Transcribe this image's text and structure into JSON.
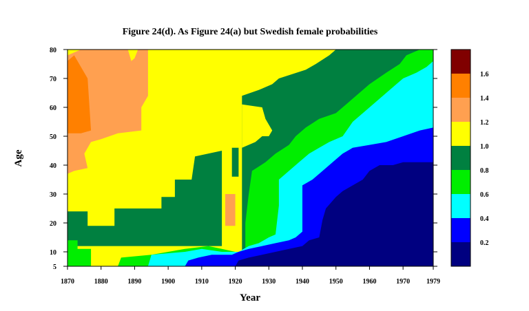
{
  "chart_data": {
    "type": "heatmap",
    "title": "Figure 24(d). As Figure 24(a) but Swedish female probabilities",
    "xlabel": "Year",
    "ylabel": "Age",
    "xlim": [
      1870,
      1979
    ],
    "ylim": [
      5,
      80
    ],
    "x_ticks": [
      "1870",
      "1880",
      "1890",
      "1900",
      "1910",
      "1920",
      "1930",
      "1940",
      "1950",
      "1960",
      "1970",
      "1979"
    ],
    "y_ticks": [
      "5",
      "10",
      "20",
      "30",
      "40",
      "50",
      "60",
      "70",
      "80"
    ],
    "colorbar": {
      "range": [
        0,
        1.8
      ],
      "tick_labels": [
        "0.2",
        "0.4",
        "0.6",
        "0.8",
        "1.0",
        "1.2",
        "1.4",
        "1.6"
      ],
      "bins": [
        {
          "from": 0.0,
          "to": 0.2,
          "color": "#000080"
        },
        {
          "from": 0.2,
          "to": 0.4,
          "color": "#0000ff"
        },
        {
          "from": 0.4,
          "to": 0.6,
          "color": "#00ffff"
        },
        {
          "from": 0.6,
          "to": 0.8,
          "color": "#00ee00"
        },
        {
          "from": 0.8,
          "to": 1.0,
          "color": "#008040"
        },
        {
          "from": 1.0,
          "to": 1.2,
          "color": "#ffff00"
        },
        {
          "from": 1.2,
          "to": 1.4,
          "color": "#ffa050"
        },
        {
          "from": 1.4,
          "to": 1.6,
          "color": "#ff8000"
        },
        {
          "from": 1.6,
          "to": 1.8,
          "color": "#800000"
        }
      ]
    },
    "regions": [
      {
        "level": "1.0-1.2",
        "color": "#ffff00",
        "points": [
          [
            1870,
            80
          ],
          [
            1979,
            80
          ],
          [
            1979,
            5
          ],
          [
            1870,
            5
          ]
        ]
      },
      {
        "level": "0.8-1.0",
        "color": "#008040",
        "points": [
          [
            1870,
            24
          ],
          [
            1876,
            24
          ],
          [
            1876,
            19
          ],
          [
            1884,
            19
          ],
          [
            1884,
            25
          ],
          [
            1898,
            25
          ],
          [
            1898,
            29
          ],
          [
            1902,
            29
          ],
          [
            1902,
            35
          ],
          [
            1907,
            35
          ],
          [
            1908,
            43
          ],
          [
            1916,
            45
          ],
          [
            1916,
            12
          ],
          [
            1870,
            12
          ]
        ]
      },
      {
        "level": "0.8-1.0",
        "color": "#008040",
        "points": [
          [
            1922,
            42
          ],
          [
            1922,
            64
          ],
          [
            1927,
            66
          ],
          [
            1931,
            68
          ],
          [
            1933,
            70
          ],
          [
            1941,
            73
          ],
          [
            1944,
            75
          ],
          [
            1948,
            78
          ],
          [
            1950,
            80
          ],
          [
            1979,
            80
          ],
          [
            1979,
            5
          ],
          [
            1922,
            5
          ]
        ]
      },
      {
        "level": "0.8-1.0",
        "color": "#008040",
        "points": [
          [
            1919,
            46
          ],
          [
            1921,
            46
          ],
          [
            1921,
            36
          ],
          [
            1919,
            36
          ]
        ]
      },
      {
        "level": "1.0-1.2",
        "color": "#ffff00",
        "points": [
          [
            1922,
            46
          ],
          [
            1926,
            48
          ],
          [
            1928,
            50
          ],
          [
            1930,
            50
          ],
          [
            1931,
            52
          ],
          [
            1929,
            56
          ],
          [
            1928,
            60
          ],
          [
            1922,
            61
          ]
        ]
      },
      {
        "level": "0.6-0.8",
        "color": "#00ee00",
        "points": [
          [
            1870,
            14
          ],
          [
            1873,
            14
          ],
          [
            1873,
            11
          ],
          [
            1877,
            11
          ],
          [
            1877,
            5
          ],
          [
            1870,
            5
          ]
        ]
      },
      {
        "level": "0.6-0.8",
        "color": "#00ee00",
        "points": [
          [
            1886,
            8
          ],
          [
            1895,
            9
          ],
          [
            1905,
            11
          ],
          [
            1912,
            12
          ],
          [
            1916,
            11
          ],
          [
            1920,
            10
          ],
          [
            1920,
            5
          ],
          [
            1885,
            5
          ]
        ]
      },
      {
        "level": "0.6-0.8",
        "color": "#00ee00",
        "points": [
          [
            1923,
            20
          ],
          [
            1924,
            30
          ],
          [
            1925,
            38
          ],
          [
            1929,
            41
          ],
          [
            1932,
            44
          ],
          [
            1936,
            47
          ],
          [
            1938,
            50
          ],
          [
            1941,
            53
          ],
          [
            1945,
            56
          ],
          [
            1950,
            58
          ],
          [
            1955,
            63
          ],
          [
            1960,
            68
          ],
          [
            1965,
            72
          ],
          [
            1969,
            75
          ],
          [
            1971,
            78
          ],
          [
            1975,
            80
          ],
          [
            1979,
            80
          ],
          [
            1979,
            5
          ],
          [
            1923,
            5
          ]
        ]
      },
      {
        "level": "0.4-0.6",
        "color": "#00ffff",
        "points": [
          [
            1894,
            5
          ],
          [
            1895,
            9
          ],
          [
            1905,
            10
          ],
          [
            1910,
            11
          ],
          [
            1916,
            10
          ],
          [
            1921,
            10
          ],
          [
            1924,
            12
          ],
          [
            1927,
            13
          ],
          [
            1930,
            15
          ],
          [
            1932,
            16
          ],
          [
            1933,
            26
          ],
          [
            1933,
            35
          ],
          [
            1936,
            38
          ],
          [
            1939,
            41
          ],
          [
            1942,
            44
          ],
          [
            1945,
            46
          ],
          [
            1948,
            48
          ],
          [
            1952,
            50
          ],
          [
            1955,
            55
          ],
          [
            1959,
            59
          ],
          [
            1962,
            62
          ],
          [
            1965,
            65
          ],
          [
            1968,
            68
          ],
          [
            1970,
            70
          ],
          [
            1974,
            72
          ],
          [
            1977,
            74
          ],
          [
            1979,
            76
          ],
          [
            1979,
            5
          ]
        ]
      },
      {
        "level": "0.2-0.4",
        "color": "#0000ff",
        "points": [
          [
            1905,
            5
          ],
          [
            1906,
            7
          ],
          [
            1909,
            8
          ],
          [
            1913,
            9
          ],
          [
            1919,
            9
          ],
          [
            1921,
            10
          ],
          [
            1924,
            11
          ],
          [
            1928,
            12
          ],
          [
            1932,
            13
          ],
          [
            1936,
            14
          ],
          [
            1938,
            15
          ],
          [
            1940,
            17
          ],
          [
            1940,
            23
          ],
          [
            1940,
            33
          ],
          [
            1943,
            35
          ],
          [
            1945,
            37
          ],
          [
            1947,
            39
          ],
          [
            1950,
            42
          ],
          [
            1952,
            44
          ],
          [
            1955,
            46
          ],
          [
            1960,
            47
          ],
          [
            1965,
            48
          ],
          [
            1970,
            50
          ],
          [
            1975,
            52
          ],
          [
            1979,
            53
          ],
          [
            1979,
            5
          ]
        ]
      },
      {
        "level": "0.0-0.2",
        "color": "#000080",
        "points": [
          [
            1920,
            5
          ],
          [
            1921,
            7
          ],
          [
            1924,
            8
          ],
          [
            1928,
            9
          ],
          [
            1932,
            10
          ],
          [
            1936,
            11
          ],
          [
            1940,
            12
          ],
          [
            1942,
            14
          ],
          [
            1945,
            15
          ],
          [
            1946,
            21
          ],
          [
            1947,
            25
          ],
          [
            1950,
            29
          ],
          [
            1952,
            31
          ],
          [
            1955,
            33
          ],
          [
            1958,
            35
          ],
          [
            1960,
            38
          ],
          [
            1963,
            40
          ],
          [
            1967,
            40
          ],
          [
            1970,
            41
          ],
          [
            1974,
            41
          ],
          [
            1979,
            41
          ],
          [
            1979,
            5
          ]
        ]
      },
      {
        "level": "1.2-1.4",
        "color": "#ffa050",
        "points": [
          [
            1870,
            78
          ],
          [
            1874,
            80
          ],
          [
            1888,
            80
          ],
          [
            1889,
            76
          ],
          [
            1890,
            77
          ],
          [
            1891,
            80
          ],
          [
            1894,
            80
          ],
          [
            1894,
            64
          ],
          [
            1892,
            60
          ],
          [
            1892,
            52
          ],
          [
            1885,
            51
          ],
          [
            1880,
            49
          ],
          [
            1877,
            48
          ],
          [
            1875,
            44
          ],
          [
            1876,
            39
          ],
          [
            1872,
            38
          ],
          [
            1870,
            37
          ]
        ]
      },
      {
        "level": "1.2-1.4",
        "color": "#ffa050",
        "points": [
          [
            1917,
            30
          ],
          [
            1920,
            30
          ],
          [
            1920,
            19
          ],
          [
            1917,
            19
          ]
        ]
      },
      {
        "level": "1.4-1.6",
        "color": "#ff8000",
        "points": [
          [
            1870,
            76
          ],
          [
            1872,
            78
          ],
          [
            1876,
            70
          ],
          [
            1877,
            52
          ],
          [
            1874,
            51
          ],
          [
            1870,
            51
          ]
        ]
      }
    ]
  }
}
